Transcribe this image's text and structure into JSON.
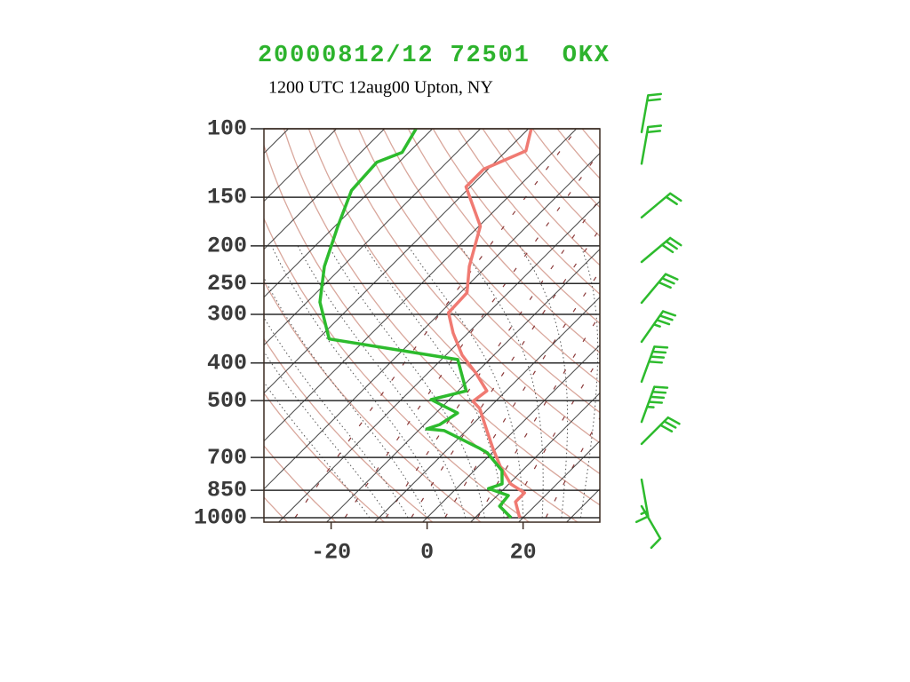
{
  "chart_data": {
    "type": "skewt",
    "title": "20000812/12 72501  OKX",
    "subtitle": "1200 UTC 12aug00 Upton, NY",
    "xlim": [
      -34,
      36
    ],
    "ylim": [
      1000,
      100
    ],
    "log_scale_y": true,
    "xticks": [
      -20,
      0,
      20
    ],
    "yticks": [
      100,
      150,
      200,
      250,
      300,
      400,
      500,
      700,
      850,
      1000
    ],
    "grid": true,
    "series": [
      {
        "color": "#f07a72",
        "x": [
          19.3,
          15.1,
          15.1,
          10.4,
          4.5,
          -0.7,
          -5.7,
          -11.8,
          -14.7,
          -14.0,
          -20.1,
          -26.6,
          -33.1,
          -38.3,
          -38.6,
          -43.6,
          -49.7,
          -60.9,
          -60.9,
          -55.9,
          -59.4
        ],
        "values": [
          1000,
          910,
          863,
          819,
          737,
          664,
          597,
          524,
          502,
          472,
          424,
          382,
          335,
          297,
          264,
          226,
          178,
          141,
          127,
          114,
          100
        ]
      },
      {
        "color": "#2dbb2d",
        "x": [
          17.5,
          12.7,
          12.3,
          6.7,
          8.6,
          5.8,
          -1.0,
          -3.4,
          -14.6,
          -18.6,
          -16.8,
          -15.5,
          -23.8,
          -18.3,
          -26.6,
          -57.7,
          -67.3,
          -73.8,
          -79.4,
          -84.0,
          -84.6,
          -81.4,
          -83.4
        ],
        "values": [
          1000,
          934,
          877,
          841,
          819,
          757,
          681,
          664,
          597,
          591,
          576,
          538,
          497,
          472,
          392,
          347,
          279,
          226,
          178,
          144,
          122,
          115,
          100
        ]
      }
    ],
    "winds": {
      "color": "#2dbb2d",
      "pressure": [
        102,
        123,
        169,
        220,
        280,
        353,
        447,
        567,
        646,
        798,
        934
      ],
      "direction": [
        10,
        10,
        50,
        50,
        40,
        35,
        20,
        20,
        45,
        170,
        150
      ],
      "speed": [
        20,
        20,
        20,
        30,
        30,
        35,
        40,
        45,
        30,
        15,
        10
      ]
    }
  }
}
